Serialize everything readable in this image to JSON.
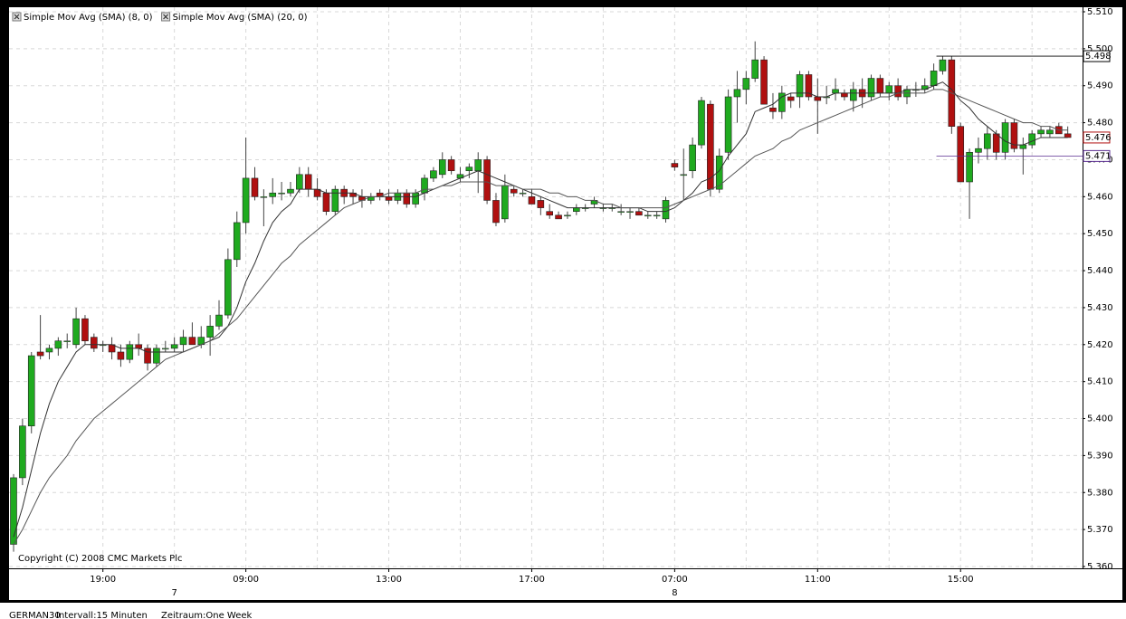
{
  "chart_data": {
    "type": "candlestick",
    "categories": [
      null,
      null,
      null,
      null,
      null,
      null,
      null,
      null,
      null,
      null,
      "19:00",
      null,
      null,
      null,
      null,
      null,
      null,
      null,
      null,
      null,
      null,
      null,
      null,
      null,
      null,
      null,
      "09:00",
      null,
      null,
      null,
      null,
      null,
      null,
      null,
      null,
      null,
      null,
      null,
      null,
      null,
      null,
      null,
      "13:00",
      null,
      null,
      null,
      null,
      null,
      null,
      null,
      null,
      null,
      null,
      null,
      null,
      null,
      null,
      null,
      "17:00",
      null,
      null,
      null,
      null,
      null,
      null,
      null,
      null,
      null,
      null,
      null,
      null,
      null,
      null,
      null,
      "07:00",
      null,
      null,
      null,
      null,
      null,
      null,
      null,
      null,
      null,
      null,
      null,
      null,
      null,
      null,
      null,
      "11:00",
      null,
      null,
      null,
      null,
      null,
      null,
      null,
      null,
      null,
      null,
      null,
      null,
      null,
      null,
      null,
      "15:00",
      null,
      null,
      null,
      null,
      null,
      null,
      null,
      null,
      null,
      null,
      null,
      null
    ],
    "day_labels": [
      null,
      null,
      null,
      null,
      null,
      null,
      null,
      null,
      null,
      null,
      null,
      null,
      null,
      null,
      null,
      null,
      null,
      null,
      "7",
      null,
      null,
      null,
      null,
      null,
      null,
      null,
      null,
      null,
      null,
      null,
      null,
      null,
      null,
      null,
      null,
      null,
      null,
      null,
      null,
      null,
      null,
      null,
      null,
      null,
      null,
      null,
      null,
      null,
      null,
      null,
      null,
      null,
      null,
      null,
      null,
      null,
      null,
      null,
      null,
      null,
      null,
      null,
      null,
      null,
      null,
      null,
      null,
      null,
      null,
      null,
      null,
      null,
      null,
      null,
      "8",
      null,
      null,
      null,
      null,
      null,
      null,
      null,
      null,
      null,
      null,
      null,
      null,
      null,
      null,
      null,
      null,
      null,
      null,
      null,
      null,
      null,
      null,
      null,
      null,
      null,
      null,
      null,
      null,
      null,
      null,
      null,
      null,
      null,
      null,
      null,
      null,
      null,
      null,
      null,
      null,
      null,
      null,
      null,
      null
    ],
    "open": [
      5.366,
      5.384,
      5.398,
      5.418,
      5.418,
      5.419,
      5.421,
      5.42,
      5.427,
      5.422,
      5.42,
      5.42,
      5.418,
      5.416,
      5.42,
      5.419,
      5.415,
      5.419,
      5.419,
      5.42,
      5.422,
      5.42,
      5.422,
      5.425,
      5.428,
      5.443,
      5.453,
      5.465,
      5.46,
      5.46,
      5.461,
      5.461,
      5.462,
      5.466,
      5.462,
      5.461,
      5.456,
      5.462,
      5.461,
      5.46,
      5.459,
      5.461,
      5.46,
      5.459,
      5.461,
      5.458,
      5.461,
      5.465,
      5.466,
      5.47,
      5.465,
      5.467,
      5.467,
      5.47,
      5.459,
      5.454,
      5.462,
      5.461,
      5.46,
      5.459,
      5.456,
      5.455,
      5.455,
      5.456,
      5.457,
      5.458,
      5.457,
      5.457,
      5.456,
      5.456,
      5.456,
      5.455,
      5.455,
      5.454,
      5.469,
      5.466,
      5.467,
      5.474,
      5.485,
      5.462,
      5.472,
      5.487,
      5.489,
      5.492,
      5.497,
      5.484,
      5.483,
      5.487,
      5.487,
      5.493,
      5.487,
      5.487,
      5.488,
      5.488,
      5.486,
      5.489,
      5.487,
      5.492,
      5.488,
      5.49,
      5.487,
      5.489,
      5.489,
      5.49,
      5.494,
      5.497,
      5.479,
      5.464,
      5.472,
      5.473,
      5.477,
      5.472,
      5.48,
      5.473,
      5.474,
      5.477,
      5.477,
      5.479,
      5.477
    ],
    "high": [
      5.385,
      5.4,
      5.418,
      5.428,
      5.42,
      5.422,
      5.423,
      5.43,
      5.428,
      5.423,
      5.421,
      5.422,
      5.42,
      5.421,
      5.423,
      5.42,
      5.42,
      5.421,
      5.422,
      5.424,
      5.426,
      5.425,
      5.428,
      5.432,
      5.446,
      5.456,
      5.476,
      5.468,
      5.462,
      5.465,
      5.464,
      5.464,
      5.468,
      5.468,
      5.465,
      5.462,
      5.463,
      5.463,
      5.462,
      5.462,
      5.461,
      5.462,
      5.462,
      5.462,
      5.462,
      5.462,
      5.466,
      5.468,
      5.472,
      5.471,
      5.468,
      5.469,
      5.472,
      5.471,
      5.461,
      5.466,
      5.463,
      5.462,
      5.462,
      5.46,
      5.458,
      5.456,
      5.456,
      5.458,
      5.458,
      5.46,
      5.458,
      5.458,
      5.458,
      5.457,
      5.457,
      5.456,
      5.456,
      5.46,
      5.47,
      5.473,
      5.476,
      5.487,
      5.486,
      5.473,
      5.489,
      5.494,
      5.494,
      5.502,
      5.498,
      5.488,
      5.49,
      5.488,
      5.494,
      5.494,
      5.492,
      5.49,
      5.492,
      5.489,
      5.491,
      5.492,
      5.493,
      5.493,
      5.491,
      5.492,
      5.49,
      5.491,
      5.492,
      5.496,
      5.498,
      5.498,
      5.48,
      5.473,
      5.476,
      5.479,
      5.478,
      5.481,
      5.481,
      5.476,
      5.478,
      5.479,
      5.479,
      5.48,
      5.479
    ],
    "low": [
      5.364,
      5.382,
      5.396,
      5.416,
      5.416,
      5.417,
      5.419,
      5.419,
      5.42,
      5.418,
      5.418,
      5.416,
      5.414,
      5.415,
      5.417,
      5.413,
      5.414,
      5.418,
      5.418,
      5.418,
      5.42,
      5.419,
      5.417,
      5.424,
      5.427,
      5.441,
      5.45,
      5.459,
      5.452,
      5.458,
      5.459,
      5.46,
      5.461,
      5.46,
      5.459,
      5.455,
      5.455,
      5.458,
      5.458,
      5.457,
      5.458,
      5.459,
      5.458,
      5.458,
      5.457,
      5.457,
      5.459,
      5.464,
      5.465,
      5.466,
      5.464,
      5.465,
      5.461,
      5.458,
      5.452,
      5.453,
      5.46,
      5.46,
      5.458,
      5.455,
      5.454,
      5.454,
      5.454,
      5.455,
      5.456,
      5.457,
      5.456,
      5.456,
      5.455,
      5.454,
      5.455,
      5.454,
      5.454,
      5.453,
      5.467,
      5.459,
      5.465,
      5.473,
      5.46,
      5.461,
      5.47,
      5.48,
      5.485,
      5.491,
      5.485,
      5.481,
      5.481,
      5.484,
      5.484,
      5.486,
      5.477,
      5.485,
      5.486,
      5.486,
      5.483,
      5.484,
      5.486,
      5.487,
      5.486,
      5.486,
      5.485,
      5.487,
      5.488,
      5.489,
      5.493,
      5.477,
      5.464,
      5.454,
      5.469,
      5.47,
      5.47,
      5.47,
      5.472,
      5.466,
      5.473,
      5.476,
      5.476,
      5.477,
      5.476
    ],
    "close": [
      5.384,
      5.398,
      5.417,
      5.417,
      5.419,
      5.421,
      5.421,
      5.427,
      5.421,
      5.419,
      5.42,
      5.418,
      5.416,
      5.42,
      5.419,
      5.415,
      5.419,
      5.419,
      5.42,
      5.422,
      5.42,
      5.422,
      5.425,
      5.428,
      5.443,
      5.453,
      5.465,
      5.46,
      5.46,
      5.461,
      5.461,
      5.462,
      5.466,
      5.462,
      5.46,
      5.456,
      5.462,
      5.46,
      5.46,
      5.459,
      5.46,
      5.46,
      5.459,
      5.461,
      5.458,
      5.461,
      5.465,
      5.467,
      5.47,
      5.467,
      5.466,
      5.468,
      5.47,
      5.459,
      5.453,
      5.463,
      5.461,
      5.461,
      5.458,
      5.457,
      5.455,
      5.454,
      5.455,
      5.457,
      5.457,
      5.459,
      5.457,
      5.457,
      5.456,
      5.456,
      5.455,
      5.455,
      5.455,
      5.459,
      5.468,
      5.466,
      5.474,
      5.486,
      5.462,
      5.471,
      5.487,
      5.489,
      5.492,
      5.497,
      5.485,
      5.483,
      5.488,
      5.486,
      5.493,
      5.487,
      5.486,
      5.487,
      5.489,
      5.487,
      5.489,
      5.487,
      5.492,
      5.488,
      5.49,
      5.487,
      5.489,
      5.489,
      5.49,
      5.494,
      5.497,
      5.479,
      5.464,
      5.472,
      5.473,
      5.477,
      5.472,
      5.48,
      5.473,
      5.474,
      5.477,
      5.478,
      5.478,
      5.477,
      5.476
    ],
    "up_color": "#1faa1f",
    "down_color": "#b01010",
    "series": [
      {
        "name": "Simple Mov Avg (SMA) (8, 0)",
        "color": "#333333",
        "values": [
          5.368,
          5.376,
          5.386,
          5.396,
          5.404,
          5.41,
          5.414,
          5.418,
          5.42,
          5.42,
          5.42,
          5.42,
          5.419,
          5.419,
          5.419,
          5.418,
          5.418,
          5.418,
          5.418,
          5.418,
          5.419,
          5.42,
          5.421,
          5.422,
          5.425,
          5.43,
          5.437,
          5.442,
          5.448,
          5.453,
          5.456,
          5.458,
          5.462,
          5.462,
          5.462,
          5.461,
          5.461,
          5.461,
          5.461,
          5.46,
          5.46,
          5.46,
          5.46,
          5.46,
          5.46,
          5.46,
          5.461,
          5.462,
          5.463,
          5.464,
          5.465,
          5.466,
          5.467,
          5.466,
          5.465,
          5.464,
          5.463,
          5.462,
          5.461,
          5.46,
          5.459,
          5.458,
          5.457,
          5.457,
          5.457,
          5.457,
          5.457,
          5.457,
          5.457,
          5.457,
          5.457,
          5.456,
          5.456,
          5.456,
          5.457,
          5.459,
          5.461,
          5.464,
          5.465,
          5.467,
          5.471,
          5.474,
          5.477,
          5.483,
          5.484,
          5.485,
          5.487,
          5.488,
          5.488,
          5.488,
          5.487,
          5.487,
          5.488,
          5.488,
          5.488,
          5.488,
          5.488,
          5.488,
          5.488,
          5.488,
          5.489,
          5.489,
          5.489,
          5.49,
          5.491,
          5.489,
          5.486,
          5.484,
          5.481,
          5.479,
          5.477,
          5.475,
          5.474,
          5.474,
          5.475,
          5.476,
          5.476,
          5.476,
          5.476
        ]
      },
      {
        "name": "Simple Mov Avg (SMA) (20, 0)",
        "color": "#555555",
        "values": [
          5.366,
          5.37,
          5.375,
          5.38,
          5.384,
          5.387,
          5.39,
          5.394,
          5.397,
          5.4,
          5.402,
          5.404,
          5.406,
          5.408,
          5.41,
          5.412,
          5.414,
          5.416,
          5.417,
          5.418,
          5.419,
          5.42,
          5.421,
          5.423,
          5.425,
          5.427,
          5.43,
          5.433,
          5.436,
          5.439,
          5.442,
          5.444,
          5.447,
          5.449,
          5.451,
          5.453,
          5.455,
          5.457,
          5.458,
          5.459,
          5.46,
          5.46,
          5.461,
          5.461,
          5.461,
          5.461,
          5.462,
          5.462,
          5.463,
          5.463,
          5.464,
          5.464,
          5.464,
          5.464,
          5.463,
          5.463,
          5.463,
          5.462,
          5.462,
          5.462,
          5.461,
          5.461,
          5.46,
          5.46,
          5.459,
          5.459,
          5.458,
          5.458,
          5.457,
          5.457,
          5.457,
          5.457,
          5.457,
          5.457,
          5.458,
          5.459,
          5.46,
          5.461,
          5.462,
          5.463,
          5.465,
          5.467,
          5.469,
          5.471,
          5.472,
          5.473,
          5.475,
          5.476,
          5.478,
          5.479,
          5.48,
          5.481,
          5.482,
          5.483,
          5.484,
          5.485,
          5.486,
          5.487,
          5.487,
          5.488,
          5.488,
          5.488,
          5.488,
          5.489,
          5.489,
          5.488,
          5.487,
          5.486,
          5.485,
          5.484,
          5.483,
          5.482,
          5.481,
          5.48,
          5.48,
          5.479,
          5.479,
          5.478,
          5.478
        ]
      }
    ],
    "ylim": [
      5.36,
      5.51
    ],
    "yticks": [
      {
        "value": 5.36,
        "label": "5.360"
      },
      {
        "value": 5.37,
        "label": "5.370"
      },
      {
        "value": 5.38,
        "label": "5.380"
      },
      {
        "value": 5.39,
        "label": "5.390"
      },
      {
        "value": 5.4,
        "label": "5.400"
      },
      {
        "value": 5.41,
        "label": "5.410"
      },
      {
        "value": 5.42,
        "label": "5.420"
      },
      {
        "value": 5.43,
        "label": "5.430"
      },
      {
        "value": 5.44,
        "label": "5.440"
      },
      {
        "value": 5.45,
        "label": "5.450"
      },
      {
        "value": 5.46,
        "label": "5.460"
      },
      {
        "value": 5.47,
        "label": "5.470"
      },
      {
        "value": 5.48,
        "label": "5.480"
      },
      {
        "value": 5.49,
        "label": "5.490"
      },
      {
        "value": 5.5,
        "label": "5.500"
      },
      {
        "value": 5.51,
        "label": "5.510"
      }
    ],
    "grid": true,
    "price_labels": [
      {
        "value": 5.498,
        "label": "5.498",
        "color": "#000000",
        "line": true
      },
      {
        "value": 5.476,
        "label": "5.476",
        "color": "#b01010",
        "line": false
      },
      {
        "value": 5.471,
        "label": "5.471",
        "color": "#5a2d91",
        "line": true
      }
    ],
    "copyright": "Copyright (C) 2008 CMC Markets Plc"
  },
  "footer": {
    "instrument": "GERMAN30",
    "interval": "Intervall:15 Minuten",
    "period": "Zeitraum:One Week"
  }
}
